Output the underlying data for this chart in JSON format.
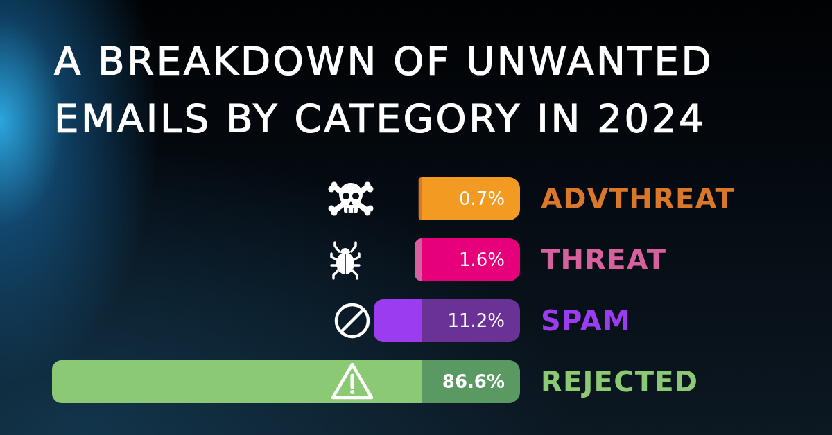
{
  "chart_data": {
    "type": "bar",
    "orientation": "horizontal",
    "title": "A BREAKDOWN OF UNWANTED EMAILS BY CATEGORY IN 2024",
    "categories": [
      "ADVTHREAT",
      "THREAT",
      "SPAM",
      "REJECTED"
    ],
    "values": [
      0.7,
      1.6,
      11.2,
      86.6
    ],
    "colors": [
      "#d9782a",
      "#d7619f",
      "#9b3cf0",
      "#8cc975"
    ],
    "value_labels": [
      "0.7%",
      "1.6%",
      "11.2%",
      "86.6%"
    ],
    "tick_labels": "y"
  }
}
